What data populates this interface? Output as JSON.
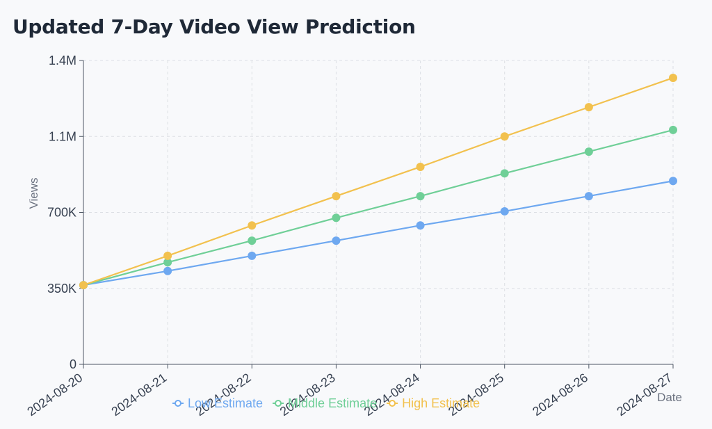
{
  "chart_data": {
    "type": "line",
    "title": "Updated 7-Day Video View Prediction",
    "xlabel": "Date",
    "ylabel": "Views",
    "categories": [
      "2024-08-20",
      "2024-08-21",
      "2024-08-22",
      "2024-08-23",
      "2024-08-24",
      "2024-08-25",
      "2024-08-26",
      "2024-08-27"
    ],
    "yticks": [
      "0",
      "350K",
      "700K",
      "1.1M",
      "1.4M"
    ],
    "ylim": [
      0,
      1400000
    ],
    "grid": true,
    "legend_position": "bottom",
    "series": [
      {
        "name": "Low Estimate",
        "color": "#6ea8f0",
        "values": [
          365000,
          430000,
          500000,
          570000,
          640000,
          705000,
          775000,
          845000
        ]
      },
      {
        "name": "Middle Estimate",
        "color": "#6fcf97",
        "values": [
          365000,
          470000,
          570000,
          675000,
          775000,
          880000,
          980000,
          1080000
        ]
      },
      {
        "name": "High Estimate",
        "color": "#f2c14e",
        "values": [
          365000,
          500000,
          640000,
          775000,
          910000,
          1050000,
          1185000,
          1320000
        ]
      }
    ]
  }
}
